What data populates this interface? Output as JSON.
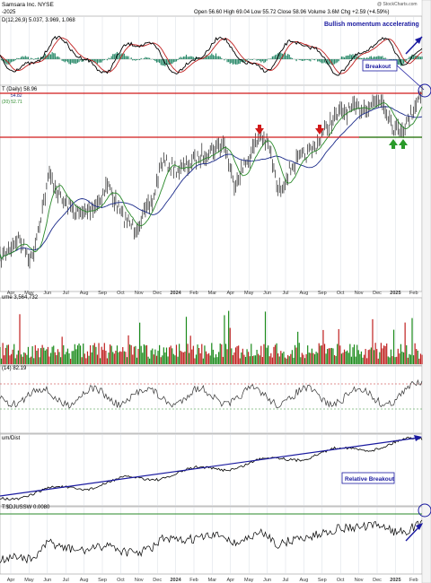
{
  "header": {
    "ticker_title": "Samsara Inc.  NYSE",
    "date_suffix": "-2025",
    "ohlc": "Open 56.60  High 69.04  Low 55.72  Close 58.96  Volume 3.6M  Chg +2.59 (+4.59%)",
    "watermark": "@ StockCharts.com"
  },
  "macd_panel": {
    "label": "D(12,26,9) 5.037, 3.969, 1.068",
    "annotation": "Bullish momentum accelerating",
    "breakout_label": "Breakout"
  },
  "price_panel": {
    "label": "T (Daily) 58.96",
    "ma1": "54.82",
    "ma2": "(20) 52.71",
    "resistance_level": 59,
    "support_level": 54
  },
  "volume_panel": {
    "label": "ume 3,564,732"
  },
  "rsi_panel": {
    "label": "(14) 82.19"
  },
  "relative_panel": {
    "label": "um/Dist",
    "annotation": "Relative Breakout"
  },
  "ratio_panel": {
    "label": "T:$DJUSSW 0.0080"
  },
  "x_axis": {
    "labels": [
      "Apr",
      "May",
      "Jun",
      "Jul",
      "Aug",
      "Sep",
      "Oct",
      "Nov",
      "Dec",
      "2024",
      "Feb",
      "Mar",
      "Apr",
      "May",
      "Jun",
      "Jul",
      "Aug",
      "Sep",
      "Oct",
      "Nov",
      "Dec",
      "2025",
      "Feb"
    ]
  },
  "colors": {
    "price_line": "#000000",
    "resistance": "#d11a1a",
    "support": "#1a8a1a",
    "annotation": "#1a1aa0",
    "ma_slow": "#1a2a8a",
    "ma_fast": "#2a8a2a",
    "macd_line": "#000000",
    "signal_line": "#c02020",
    "hist": "#2a8a6a",
    "vol_up": "#1a8a1a",
    "vol_down": "#c02020",
    "grid": "#d7dce4"
  },
  "chart_data": [
    {
      "type": "line",
      "panel": "macd",
      "series": [
        {
          "name": "MACD"
        },
        {
          "name": "Signal"
        },
        {
          "name": "Histogram"
        }
      ]
    },
    {
      "type": "line",
      "panel": "price",
      "series": [
        {
          "name": "Price"
        },
        {
          "name": "MA fast"
        },
        {
          "name": "MA slow"
        }
      ],
      "markers": {
        "sell_arrows": [
          "May 2024",
          "Aug 2024"
        ],
        "buy_arrows": [
          "Dec 2024",
          "Jan 2025"
        ]
      }
    },
    {
      "type": "bar",
      "panel": "volume"
    },
    {
      "type": "line",
      "panel": "rsi",
      "reference_lines": [
        70,
        30
      ]
    },
    {
      "type": "line",
      "panel": "relative_strength"
    },
    {
      "type": "line",
      "panel": "ratio"
    }
  ]
}
